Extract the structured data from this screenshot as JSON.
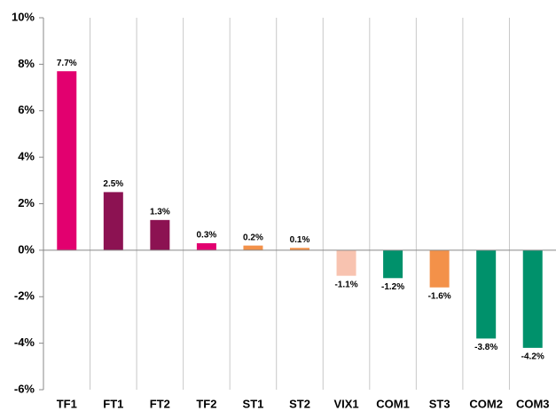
{
  "chart_data": {
    "type": "bar",
    "categories": [
      "TF1",
      "FT1",
      "FT2",
      "TF2",
      "ST1",
      "ST2",
      "VIX1",
      "COM1",
      "ST3",
      "COM2",
      "COM3"
    ],
    "values": [
      7.7,
      2.5,
      1.3,
      0.3,
      0.2,
      0.1,
      -1.1,
      -1.2,
      -1.6,
      -3.8,
      -4.2
    ],
    "value_labels": [
      "7.7%",
      "2.5%",
      "1.3%",
      "0.3%",
      "0.2%",
      "0.1%",
      "-1.1%",
      "-1.2%",
      "-1.6%",
      "-3.8%",
      "-4.2%"
    ],
    "colors": [
      "#e2006f",
      "#8c1252",
      "#8c1252",
      "#e2006f",
      "#f39149",
      "#f39149",
      "#f8c3b0",
      "#00916b",
      "#f39149",
      "#00916b",
      "#00916b"
    ],
    "ylim": [
      -6,
      10
    ],
    "yticks": [
      {
        "value": -6,
        "label": "-6%"
      },
      {
        "value": -4,
        "label": "-4%"
      },
      {
        "value": -2,
        "label": "-2%"
      },
      {
        "value": 0,
        "label": "0%"
      },
      {
        "value": 2,
        "label": "2%"
      },
      {
        "value": 4,
        "label": "4%"
      },
      {
        "value": 6,
        "label": "6%"
      },
      {
        "value": 8,
        "label": "8%"
      },
      {
        "value": 10,
        "label": "10%"
      }
    ],
    "grid": "x"
  }
}
